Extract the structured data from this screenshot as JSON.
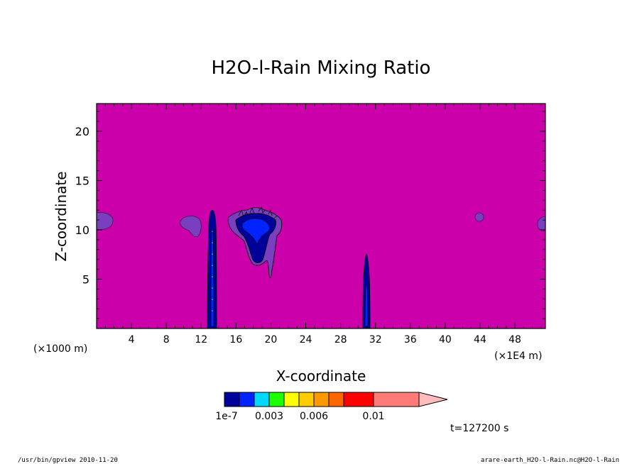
{
  "chart_data": {
    "type": "heatmap",
    "title": "H2O-l-Rain Mixing Ratio",
    "xlabel": "X-coordinate",
    "ylabel": "Z-coordinate",
    "x_unit_label": "(×1000 m)",
    "x_unit_label_right": "(×1E4 m)",
    "x_ticks": [
      "4",
      "8",
      "12",
      "16",
      "20",
      "24",
      "28",
      "32",
      "36",
      "40",
      "44",
      "48"
    ],
    "x_tick_values": [
      4,
      8,
      12,
      16,
      20,
      24,
      28,
      32,
      36,
      40,
      44,
      48
    ],
    "xlim": [
      0,
      51.5
    ],
    "y_ticks": [
      "5",
      "10",
      "15",
      "20"
    ],
    "y_tick_values": [
      5,
      10,
      15,
      20
    ],
    "ylim": [
      0,
      22.8
    ],
    "background_color": "#cc00aa",
    "colorbar": {
      "tick_labels": [
        "1e-7",
        "0.003",
        "0.006",
        "0.01"
      ],
      "tick_values": [
        1e-07,
        0.003,
        0.006,
        0.01
      ],
      "colors": [
        "#00009b",
        "#0023ff",
        "#00d8ff",
        "#1cff00",
        "#ffff00",
        "#ffcc00",
        "#ff9900",
        "#ff6600",
        "#ff0000",
        "#ff7b78",
        "#ffbcbc"
      ]
    },
    "features": [
      {
        "name": "left-edge-blob",
        "x": 0.8,
        "z": 10.8,
        "color": "#7a3fbf"
      },
      {
        "name": "small-blob-x11",
        "x": 10.8,
        "z": 10.5,
        "color": "#7a3fbf"
      },
      {
        "name": "rain-column-x13",
        "x": 13.2,
        "z_top": 12,
        "z_bottom": 0,
        "color": "#00009b"
      },
      {
        "name": "cloud-mass-x18",
        "x": 18,
        "z": 9.5,
        "color": "#00009b"
      },
      {
        "name": "rain-column-x31",
        "x": 30.8,
        "z_top": 7.5,
        "z_bottom": 0,
        "color": "#00009b"
      },
      {
        "name": "small-blob-x43",
        "x": 43.5,
        "z": 11.3,
        "color": "#7a3fbf"
      },
      {
        "name": "right-edge-blob",
        "x": 51.3,
        "z": 10.7,
        "color": "#7a3fbf"
      }
    ]
  },
  "time_label": "t=127200 s",
  "footer_left": "/usr/bin/gpview  2010-11-20",
  "footer_right": "arare-earth_H2O-l-Rain.nc@H2O-l-Rain"
}
